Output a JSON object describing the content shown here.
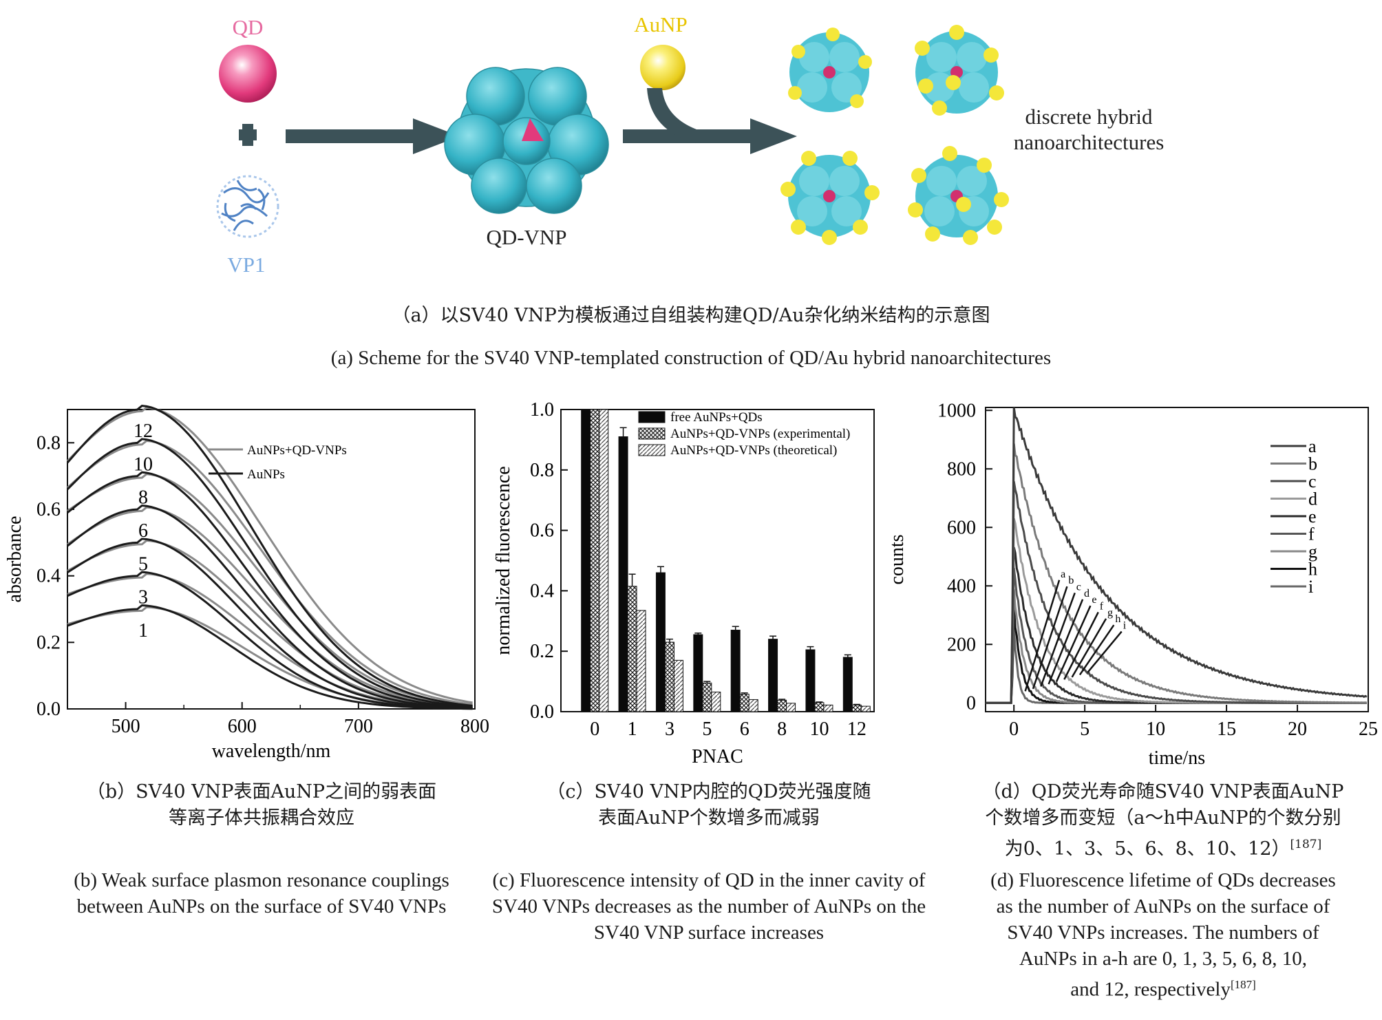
{
  "scheme": {
    "qd_label": "QD",
    "vp1_label": "VP1",
    "qdvnp_label": "QD-VNP",
    "aunp_label": "AuNP",
    "discrete_label_1": "discrete hybrid",
    "discrete_label_2": "nanoarchitectures",
    "colors": {
      "qd": "#e23a7c",
      "vp1": "#6f9fd6",
      "capsid": "#35b3c6",
      "gold": "#f2e23a",
      "arrow": "#3c5258"
    },
    "caption_zh": "（a）以SV40 VNP为模板通过自组装构建QD/Au杂化纳米结构的示意图",
    "caption_en": "(a) Scheme for the SV40 VNP-templated construction of QD/Au hybrid nanoarchitectures"
  },
  "captions": {
    "b_zh_1": "（b）SV40 VNP表面AuNP之间的弱表面",
    "b_zh_2": "等离子体共振耦合效应",
    "b_en_1": "(b) Weak surface plasmon resonance couplings",
    "b_en_2": "between AuNPs on the surface of SV40 VNPs",
    "c_zh_1": "（c）SV40 VNP内腔的QD荧光强度随",
    "c_zh_2": "表面AuNP个数增多而减弱",
    "c_en_1": "(c) Fluorescence intensity of QD in the inner cavity of",
    "c_en_2": "SV40 VNPs decreases as the number of AuNPs on the",
    "c_en_3": "SV40 VNP surface increases",
    "d_zh_1": "（d）QD荧光寿命随SV40 VNP表面AuNP",
    "d_zh_2": "个数增多而变短（a～h中AuNP的个数分别",
    "d_zh_3": "为0、1、3、5、6、8、10、12）",
    "d_zh_ref": "[187]",
    "d_en_1": "(d) Fluorescence lifetime of QDs decreases",
    "d_en_2": "as the number of AuNPs on the surface of",
    "d_en_3": "SV40 VNPs increases. The numbers of",
    "d_en_4": "AuNPs in a-h are 0, 1, 3, 5, 6, 8, 10,",
    "d_en_5": "and 12, respectively",
    "d_en_ref": "[187]"
  },
  "chart_data": [
    {
      "id": "b",
      "type": "line",
      "xlabel": "wavelength/nm",
      "ylabel": "absorbance",
      "xlim": [
        450,
        800
      ],
      "ylim": [
        0,
        0.9
      ],
      "xticks": [
        "500",
        "600",
        "700",
        "800"
      ],
      "yticks": [
        "0.0",
        "0.2",
        "0.4",
        "0.6",
        "0.8"
      ],
      "legend": [
        "AuNPs+QD-VNPs",
        "AuNPs"
      ],
      "legend_position": "top-right",
      "curve_labels": [
        "1",
        "3",
        "5",
        "6",
        "8",
        "10",
        "12"
      ],
      "series_labels_meaning": "number of AuNPs",
      "peaks": [
        {
          "label": "1",
          "start_450": 0.25,
          "peak": 0.3
        },
        {
          "label": "3",
          "start_450": 0.34,
          "peak": 0.4
        },
        {
          "label": "5",
          "start_450": 0.41,
          "peak": 0.5
        },
        {
          "label": "6",
          "start_450": 0.49,
          "peak": 0.6
        },
        {
          "label": "8",
          "start_450": 0.59,
          "peak": 0.7
        },
        {
          "label": "10",
          "start_450": 0.66,
          "peak": 0.8
        },
        {
          "label": "12",
          "start_450": 0.74,
          "peak": 0.9
        }
      ],
      "peak_wavelength": 512,
      "colors": {
        "AuNPs+QD-VNPs": "#8a8a8a",
        "AuNPs": "#1a1a1a"
      }
    },
    {
      "id": "c",
      "type": "bar",
      "xlabel": "PNAC",
      "ylabel": "normalized fluorescence",
      "ylim": [
        0,
        1.0
      ],
      "yticks": [
        "0.0",
        "0.2",
        "0.4",
        "0.6",
        "0.8",
        "1.0"
      ],
      "categories": [
        "0",
        "1",
        "3",
        "5",
        "6",
        "8",
        "10",
        "12"
      ],
      "legend_position": "top-right",
      "series": [
        {
          "name": "free AuNPs+QDs",
          "values": [
            1.0,
            0.91,
            0.46,
            0.255,
            0.27,
            0.24,
            0.205,
            0.18
          ],
          "errors": [
            0,
            0.03,
            0.02,
            0.005,
            0.012,
            0.01,
            0.01,
            0.008
          ],
          "fill": "solid"
        },
        {
          "name": "AuNPs+QD-VNPs (experimental)",
          "values": [
            1.0,
            0.415,
            0.23,
            0.095,
            0.058,
            0.038,
            0.03,
            0.022
          ],
          "errors": [
            0,
            0.04,
            0.01,
            0.005,
            0.004,
            0.003,
            0.002,
            0.002
          ],
          "fill": "crosshatch"
        },
        {
          "name": "AuNPs+QD-VNPs (theoretical)",
          "values": [
            1.0,
            0.335,
            0.17,
            0.065,
            0.04,
            0.028,
            0.022,
            0.018
          ],
          "errors": [
            0,
            0,
            0,
            0,
            0,
            0,
            0,
            0
          ],
          "fill": "diagonal"
        }
      ]
    },
    {
      "id": "d",
      "type": "line",
      "xlabel": "time/ns",
      "ylabel": "counts",
      "xlim": [
        -2,
        25
      ],
      "ylim": [
        -30,
        1010
      ],
      "xticks": [
        "0",
        "5",
        "10",
        "15",
        "20",
        "25"
      ],
      "yticks": [
        "0",
        "200",
        "400",
        "600",
        "800",
        "1000"
      ],
      "legend_position": "top-right",
      "series": [
        {
          "name": "a",
          "peak": 1000,
          "tau": 6.5,
          "color": "#3a3a3a"
        },
        {
          "name": "b",
          "peak": 880,
          "tau": 3.6,
          "color": "#7a7a7a"
        },
        {
          "name": "c",
          "peak": 760,
          "tau": 2.6,
          "color": "#4a4a4a"
        },
        {
          "name": "d",
          "peak": 640,
          "tau": 1.9,
          "color": "#9a9a9a"
        },
        {
          "name": "e",
          "peak": 540,
          "tau": 1.4,
          "color": "#2a2a2a"
        },
        {
          "name": "f",
          "peak": 460,
          "tau": 1.0,
          "color": "#555555"
        },
        {
          "name": "g",
          "peak": 380,
          "tau": 0.75,
          "color": "#888888"
        },
        {
          "name": "h",
          "peak": 320,
          "tau": 0.55,
          "color": "#111111"
        },
        {
          "name": "i",
          "peak": 260,
          "tau": 0.3,
          "color": "#666666"
        }
      ],
      "inline_labels": [
        "a",
        "b",
        "c",
        "d",
        "e",
        "f",
        "g",
        "h",
        "i"
      ]
    }
  ]
}
